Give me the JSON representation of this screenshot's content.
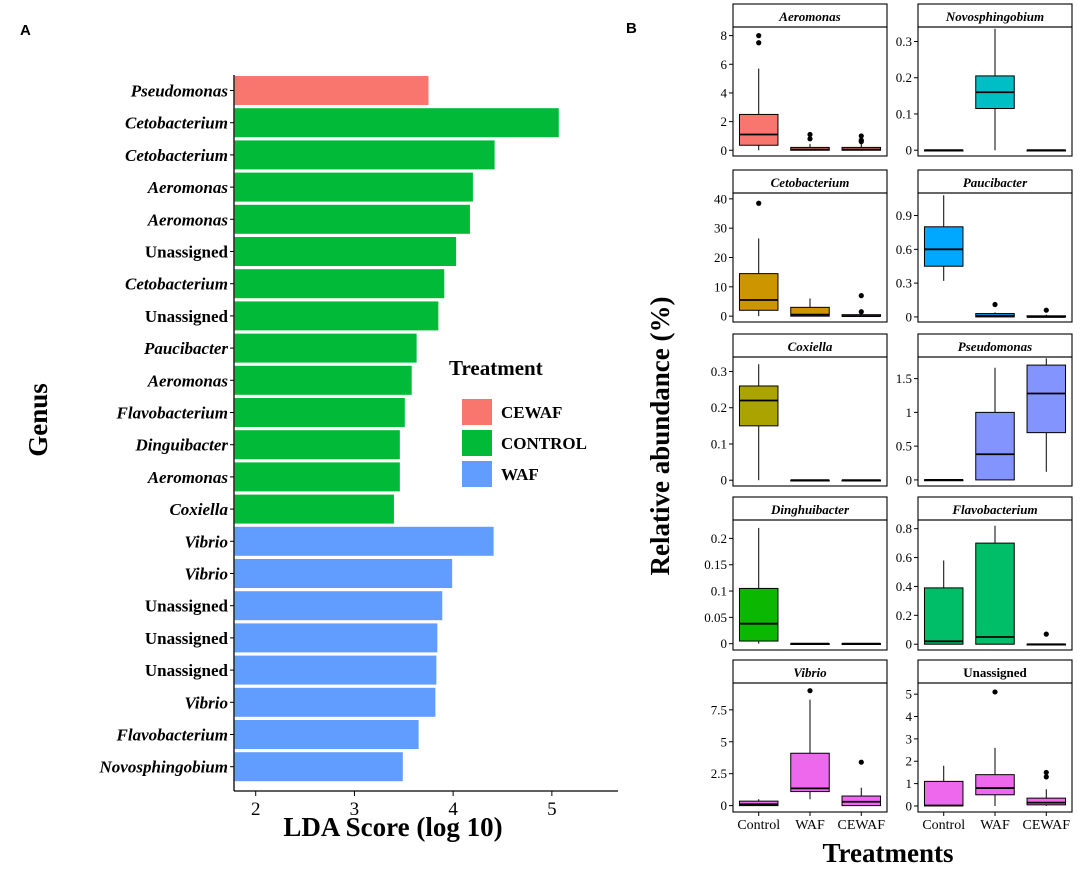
{
  "panel_a_label": "A",
  "panel_b_label": "B",
  "chart_data": [
    {
      "type": "bar",
      "orientation": "horizontal",
      "title": "",
      "xlabel": "LDA Score (log 10)",
      "ylabel": "Genus",
      "xlim": [
        1.78,
        5.67
      ],
      "xticks": [
        2,
        3,
        4,
        5
      ],
      "legend": {
        "title": "Treatment",
        "position": "right",
        "entries": [
          {
            "label": "CEWAF",
            "color": "#F8766D"
          },
          {
            "label": "CONTROL",
            "color": "#00BA38"
          },
          {
            "label": "WAF",
            "color": "#619CFF"
          }
        ]
      },
      "bars": [
        {
          "label": "Pseudomonas",
          "italic": true,
          "group": "CEWAF",
          "value": 3.75
        },
        {
          "label": "Cetobacterium",
          "italic": true,
          "group": "CONTROL",
          "value": 5.07
        },
        {
          "label": "Cetobacterium",
          "italic": true,
          "group": "CONTROL",
          "value": 4.42
        },
        {
          "label": "Aeromonas",
          "italic": true,
          "group": "CONTROL",
          "value": 4.2
        },
        {
          "label": "Aeromonas",
          "italic": true,
          "group": "CONTROL",
          "value": 4.17
        },
        {
          "label": "Unassigned",
          "italic": false,
          "group": "CONTROL",
          "value": 4.03
        },
        {
          "label": "Cetobacterium",
          "italic": true,
          "group": "CONTROL",
          "value": 3.91
        },
        {
          "label": "Unassigned",
          "italic": false,
          "group": "CONTROL",
          "value": 3.85
        },
        {
          "label": "Paucibacter",
          "italic": true,
          "group": "CONTROL",
          "value": 3.63
        },
        {
          "label": "Aeromonas",
          "italic": true,
          "group": "CONTROL",
          "value": 3.58
        },
        {
          "label": "Flavobacterium",
          "italic": true,
          "group": "CONTROL",
          "value": 3.51
        },
        {
          "label": "Dinguibacter",
          "italic": true,
          "group": "CONTROL",
          "value": 3.46
        },
        {
          "label": "Aeromonas",
          "italic": true,
          "group": "CONTROL",
          "value": 3.46
        },
        {
          "label": "Coxiella",
          "italic": true,
          "group": "CONTROL",
          "value": 3.4
        },
        {
          "label": "Vibrio",
          "italic": true,
          "group": "WAF",
          "value": 4.41
        },
        {
          "label": "Vibrio",
          "italic": true,
          "group": "WAF",
          "value": 3.99
        },
        {
          "label": "Unassigned",
          "italic": false,
          "group": "WAF",
          "value": 3.89
        },
        {
          "label": "Unassigned",
          "italic": false,
          "group": "WAF",
          "value": 3.84
        },
        {
          "label": "Unassigned",
          "italic": false,
          "group": "WAF",
          "value": 3.83
        },
        {
          "label": "Vibrio",
          "italic": true,
          "group": "WAF",
          "value": 3.82
        },
        {
          "label": "Flavobacterium",
          "italic": true,
          "group": "WAF",
          "value": 3.65
        },
        {
          "label": "Novosphingobium",
          "italic": true,
          "group": "WAF",
          "value": 3.49
        }
      ]
    },
    {
      "type": "box",
      "xlabel": "Treatments",
      "ylabel": "Relative abundance (%)",
      "categories": [
        "Control",
        "WAF",
        "CEWAF"
      ],
      "facets": [
        {
          "title": "Aeromonas",
          "italic": true,
          "color": "#F8766D",
          "ylim": [
            -0.4,
            8.6
          ],
          "yticks": [
            0,
            2,
            4,
            6,
            8
          ],
          "boxes": [
            {
              "q1": 0.35,
              "median": 1.1,
              "q3": 2.5,
              "wlo": 0,
              "whi": 5.7,
              "out": [
                7.5,
                8.0
              ]
            },
            {
              "q1": 0,
              "median": 0.05,
              "q3": 0.2,
              "wlo": 0,
              "whi": 0.45,
              "out": [
                0.8,
                1.1
              ]
            },
            {
              "q1": 0,
              "median": 0.05,
              "q3": 0.2,
              "wlo": 0,
              "whi": 0.45,
              "out": [
                0.6,
                0.7,
                1.0
              ]
            }
          ]
        },
        {
          "title": "Novosphingobium",
          "italic": true,
          "color": "#00BFC4",
          "ylim": [
            -0.016,
            0.34
          ],
          "yticks": [
            0.0,
            0.1,
            0.2,
            0.3
          ],
          "boxes": [
            {
              "q1": 0,
              "median": 0,
              "q3": 0,
              "wlo": 0,
              "whi": 0,
              "out": []
            },
            {
              "q1": 0.115,
              "median": 0.16,
              "q3": 0.205,
              "wlo": 0,
              "whi": 0.335,
              "out": []
            },
            {
              "q1": 0,
              "median": 0,
              "q3": 0,
              "wlo": 0,
              "whi": 0,
              "out": []
            }
          ]
        },
        {
          "title": "Cetobacterium",
          "italic": true,
          "color": "#CD9600",
          "ylim": [
            -2,
            42
          ],
          "yticks": [
            0,
            10,
            20,
            30,
            40
          ],
          "boxes": [
            {
              "q1": 2,
              "median": 5.5,
              "q3": 14.5,
              "wlo": 0,
              "whi": 26.5,
              "out": [
                38.5
              ]
            },
            {
              "q1": 0,
              "median": 0.5,
              "q3": 3,
              "wlo": 0,
              "whi": 6,
              "out": []
            },
            {
              "q1": 0,
              "median": 0,
              "q3": 0.5,
              "wlo": 0,
              "whi": 1,
              "out": [
                1.5,
                7
              ]
            }
          ]
        },
        {
          "title": "Paucibacter",
          "italic": true,
          "color": "#00A9FF",
          "ylim": [
            -0.045,
            1.1
          ],
          "yticks": [
            0.0,
            0.3,
            0.6,
            0.9
          ],
          "boxes": [
            {
              "q1": 0.45,
              "median": 0.6,
              "q3": 0.8,
              "wlo": 0.32,
              "whi": 1.08,
              "out": []
            },
            {
              "q1": 0,
              "median": 0.01,
              "q3": 0.03,
              "wlo": 0,
              "whi": 0.04,
              "out": [
                0.11
              ]
            },
            {
              "q1": 0,
              "median": 0,
              "q3": 0.01,
              "wlo": 0,
              "whi": 0.02,
              "out": [
                0.06
              ]
            }
          ]
        },
        {
          "title": "Coxiella",
          "italic": true,
          "color": "#ABA300",
          "ylim": [
            -0.016,
            0.34
          ],
          "yticks": [
            0.0,
            0.1,
            0.2,
            0.3
          ],
          "boxes": [
            {
              "q1": 0.15,
              "median": 0.22,
              "q3": 0.26,
              "wlo": 0,
              "whi": 0.32,
              "out": []
            },
            {
              "q1": 0,
              "median": 0,
              "q3": 0,
              "wlo": 0,
              "whi": 0,
              "out": []
            },
            {
              "q1": 0,
              "median": 0,
              "q3": 0,
              "wlo": 0,
              "whi": 0,
              "out": []
            }
          ]
        },
        {
          "title": "Pseudomonas",
          "italic": true,
          "color": "#8494FF",
          "ylim": [
            -0.09,
            1.82
          ],
          "yticks": [
            0.0,
            0.5,
            1.0,
            1.5
          ],
          "boxes": [
            {
              "q1": 0,
              "median": 0,
              "q3": 0,
              "wlo": 0,
              "whi": 0,
              "out": []
            },
            {
              "q1": 0,
              "median": 0.38,
              "q3": 1.0,
              "wlo": 0,
              "whi": 1.66,
              "out": []
            },
            {
              "q1": 0.7,
              "median": 1.28,
              "q3": 1.7,
              "wlo": 0.12,
              "whi": 1.8,
              "out": []
            }
          ]
        },
        {
          "title": "Dinghuibacter",
          "italic": true,
          "color": "#0CB702",
          "ylim": [
            -0.012,
            0.235
          ],
          "yticks": [
            0.0,
            0.05,
            0.1,
            0.15,
            0.2
          ],
          "boxes": [
            {
              "q1": 0.005,
              "median": 0.038,
              "q3": 0.105,
              "wlo": 0,
              "whi": 0.22,
              "out": []
            },
            {
              "q1": 0,
              "median": 0,
              "q3": 0,
              "wlo": 0,
              "whi": 0,
              "out": []
            },
            {
              "q1": 0,
              "median": 0,
              "q3": 0,
              "wlo": 0,
              "whi": 0,
              "out": []
            }
          ]
        },
        {
          "title": "Flavobacterium",
          "italic": true,
          "color": "#00BE67",
          "ylim": [
            -0.04,
            0.86
          ],
          "yticks": [
            0.0,
            0.2,
            0.4,
            0.6,
            0.8
          ],
          "boxes": [
            {
              "q1": 0,
              "median": 0.02,
              "q3": 0.39,
              "wlo": 0,
              "whi": 0.58,
              "out": []
            },
            {
              "q1": 0,
              "median": 0.05,
              "q3": 0.7,
              "wlo": 0,
              "whi": 0.82,
              "out": []
            },
            {
              "q1": 0,
              "median": 0,
              "q3": 0,
              "wlo": 0,
              "whi": 0.005,
              "out": [
                0.07
              ]
            }
          ]
        },
        {
          "title": "Vibrio",
          "italic": true,
          "color": "#ED68ED",
          "ylim": [
            -0.5,
            9.6
          ],
          "yticks": [
            0.0,
            2.5,
            5.0,
            7.5
          ],
          "boxes": [
            {
              "q1": 0,
              "median": 0.1,
              "q3": 0.35,
              "wlo": 0,
              "whi": 0.5,
              "out": []
            },
            {
              "q1": 1.1,
              "median": 1.35,
              "q3": 4.1,
              "wlo": 0.5,
              "whi": 8.3,
              "out": [
                9.0
              ]
            },
            {
              "q1": 0,
              "median": 0.3,
              "q3": 0.75,
              "wlo": 0,
              "whi": 1.4,
              "out": [
                3.4
              ]
            }
          ]
        },
        {
          "title": "Unassigned",
          "italic": false,
          "color": "#ED68ED",
          "ylim": [
            -0.27,
            5.5
          ],
          "yticks": [
            0,
            1,
            2,
            3,
            4,
            5
          ],
          "boxes": [
            {
              "q1": 0,
              "median": 0.02,
              "q3": 1.1,
              "wlo": 0,
              "whi": 1.8,
              "out": []
            },
            {
              "q1": 0.5,
              "median": 0.8,
              "q3": 1.4,
              "wlo": 0,
              "whi": 2.6,
              "out": [
                5.1
              ]
            },
            {
              "q1": 0.05,
              "median": 0.15,
              "q3": 0.35,
              "wlo": 0,
              "whi": 0.75,
              "out": [
                1.3,
                1.5
              ]
            }
          ]
        }
      ]
    }
  ]
}
